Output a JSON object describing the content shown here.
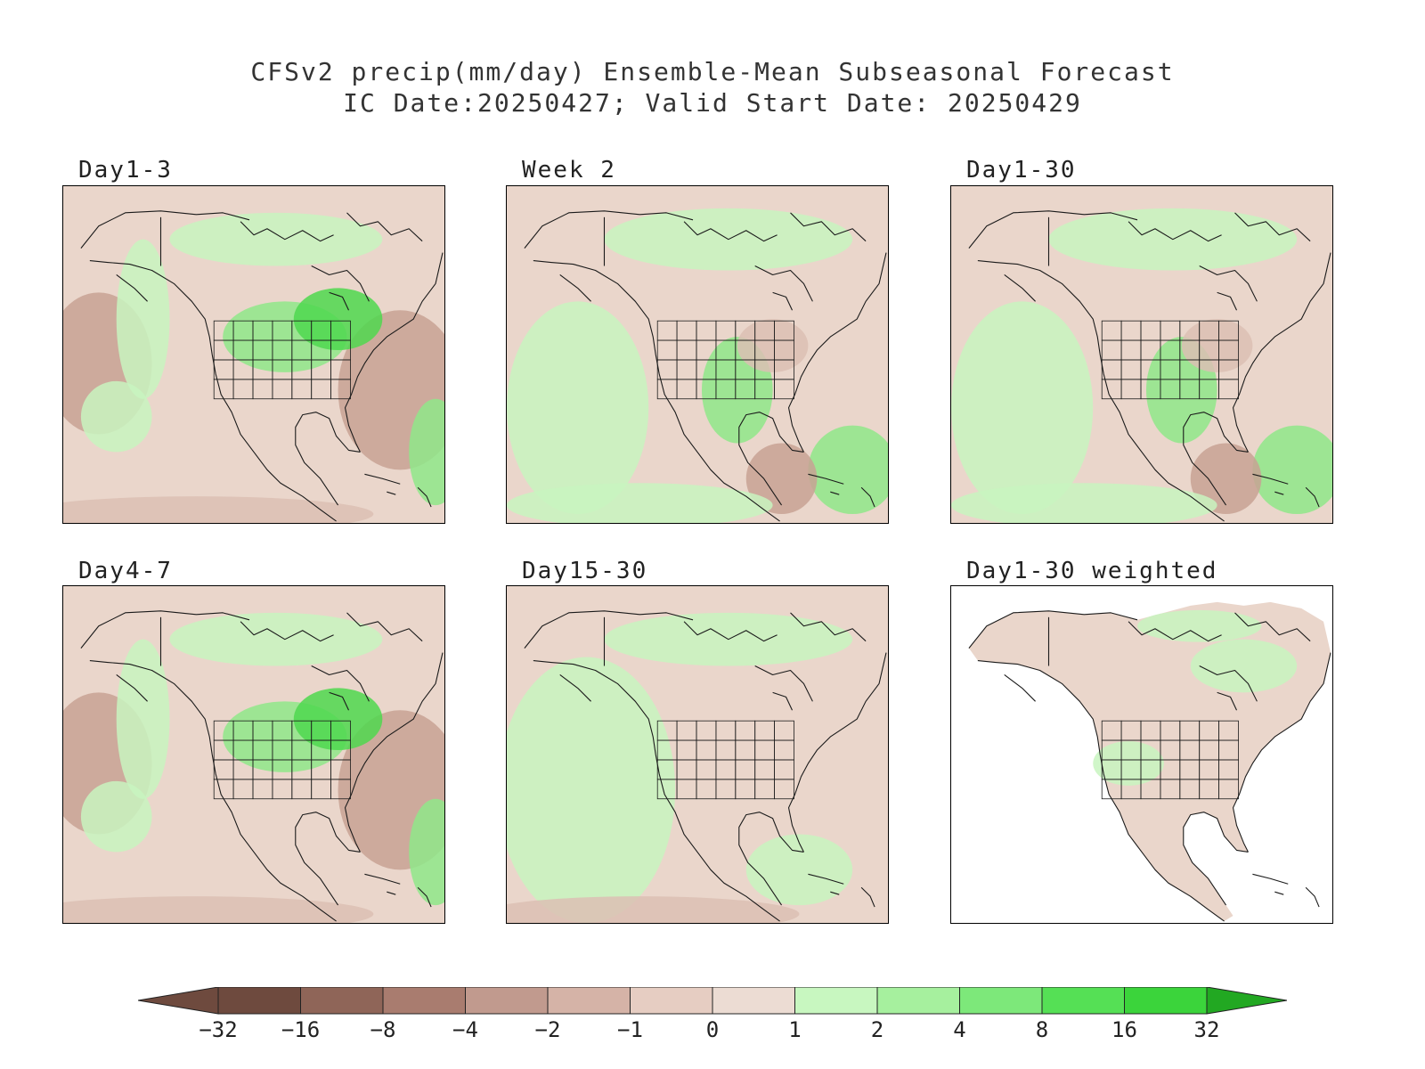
{
  "title": {
    "line1": "CFSv2 precip(mm/day) Ensemble-Mean Subseasonal Forecast",
    "line2": "IC Date:20250427; Valid Start Date: 20250429"
  },
  "panels": [
    {
      "label": "Day1-3",
      "pattern": "mixed-dry-ocean"
    },
    {
      "label": "Week 2",
      "pattern": "mixed"
    },
    {
      "label": "Day1-30",
      "pattern": "mixed"
    },
    {
      "label": "Day4-7",
      "pattern": "mixed-dry-ocean"
    },
    {
      "label": "Day15-30",
      "pattern": "wet-pacific"
    },
    {
      "label": "Day1-30 weighted",
      "pattern": "land-only"
    }
  ],
  "colorbar": {
    "labels": [
      "-32",
      "-16",
      "-8",
      "-4",
      "-2",
      "-1",
      "0",
      "1",
      "2",
      "4",
      "8",
      "16",
      "32"
    ],
    "colors": [
      "#6e4a3e",
      "#8f6558",
      "#a97c6f",
      "#c19a8e",
      "#d5b3a7",
      "#e6cdc2",
      "#ecdcd3",
      "#c8f7c0",
      "#a6f09e",
      "#7de87a",
      "#55e055",
      "#3bd43b",
      "#22b822"
    ],
    "low_end_color": "#6e4a3e",
    "high_end_color": "#22a822"
  },
  "colors": {
    "land_neutral": "#ead6cb",
    "dry_light": "#dcc0b4",
    "dry_mid": "#c8a294",
    "wet_light": "#c8f5c0",
    "wet_mid": "#8fe88a",
    "wet_strong": "#4fd84f",
    "coast": "#1a1a1a"
  }
}
